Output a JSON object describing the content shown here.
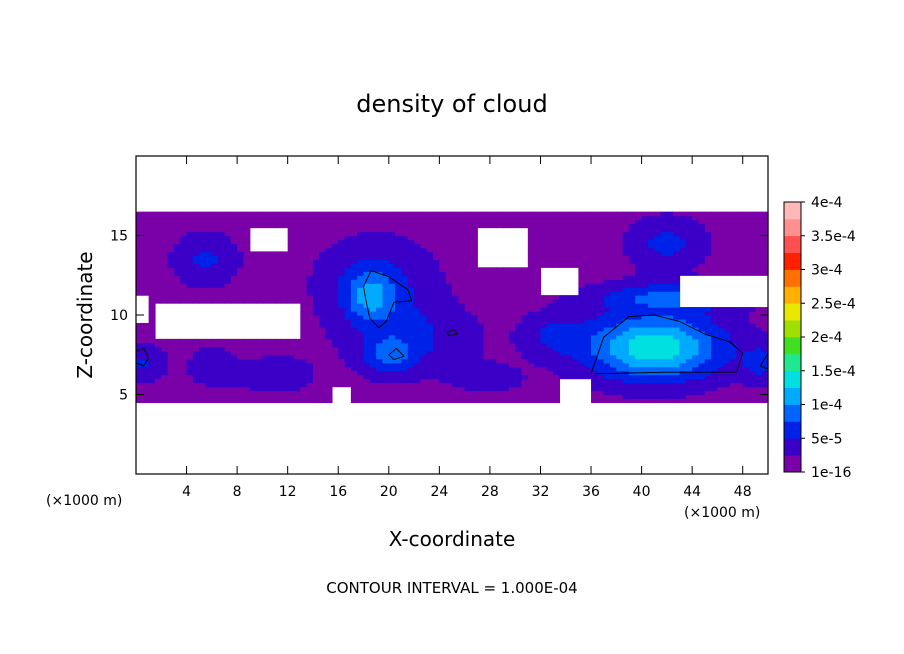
{
  "chart_data": {
    "type": "heatmap",
    "title": "density of cloud",
    "xlabel": "X-coordinate",
    "ylabel": "Z-coordinate",
    "x_unit_left": "(×1000 m)",
    "x_unit_right": "(×1000 m)",
    "xlim": [
      0,
      50
    ],
    "ylim": [
      0,
      20
    ],
    "x_ticks": [
      4,
      8,
      12,
      16,
      20,
      24,
      28,
      32,
      36,
      40,
      44,
      48
    ],
    "x_tick_labels": [
      "4",
      "8",
      "12",
      "16",
      "20",
      "24",
      "28",
      "32",
      "36",
      "40",
      "44",
      "48"
    ],
    "y_ticks": [
      5,
      10,
      15
    ],
    "y_tick_labels": [
      "5",
      "10",
      "15"
    ],
    "colorbar": {
      "levels": [
        1e-16,
        5e-05,
        0.0001,
        0.00015,
        0.0002,
        0.00025,
        0.0003,
        0.00035,
        0.0004
      ],
      "labels": [
        "1e-16",
        "5e-5",
        "1e-4",
        "1.5e-4",
        "2e-4",
        "2.5e-4",
        "3e-4",
        "3.5e-4",
        "4e-4"
      ],
      "colors": [
        "#7a00a8",
        "#3a00c8",
        "#0022e8",
        "#0064ff",
        "#00aaff",
        "#00e0e0",
        "#20e890",
        "#40e020",
        "#a0e000",
        "#e8e800",
        "#ffb000",
        "#ff7000",
        "#ff2000",
        "#ff5050",
        "#ff9090",
        "#ffb8b8"
      ]
    },
    "cloud_layer_z": [
      4.5,
      16.5
    ],
    "regions": [
      {
        "name": "large cell",
        "x": [
          36,
          48
        ],
        "z": [
          6,
          10
        ],
        "max": 0.00017
      },
      {
        "name": "central cell",
        "x": [
          14,
          26
        ],
        "z": [
          6,
          14
        ],
        "max": 0.00013
      },
      {
        "name": "upper-right cell",
        "x": [
          38,
          46
        ],
        "z": [
          11,
          16
        ],
        "max": 6e-05
      },
      {
        "name": "left cell",
        "x": [
          0,
          8
        ],
        "z": [
          5,
          15
        ],
        "max": 0.00011
      }
    ],
    "contour_interval": "CONTOUR INTERVAL = 1.000E-04"
  }
}
